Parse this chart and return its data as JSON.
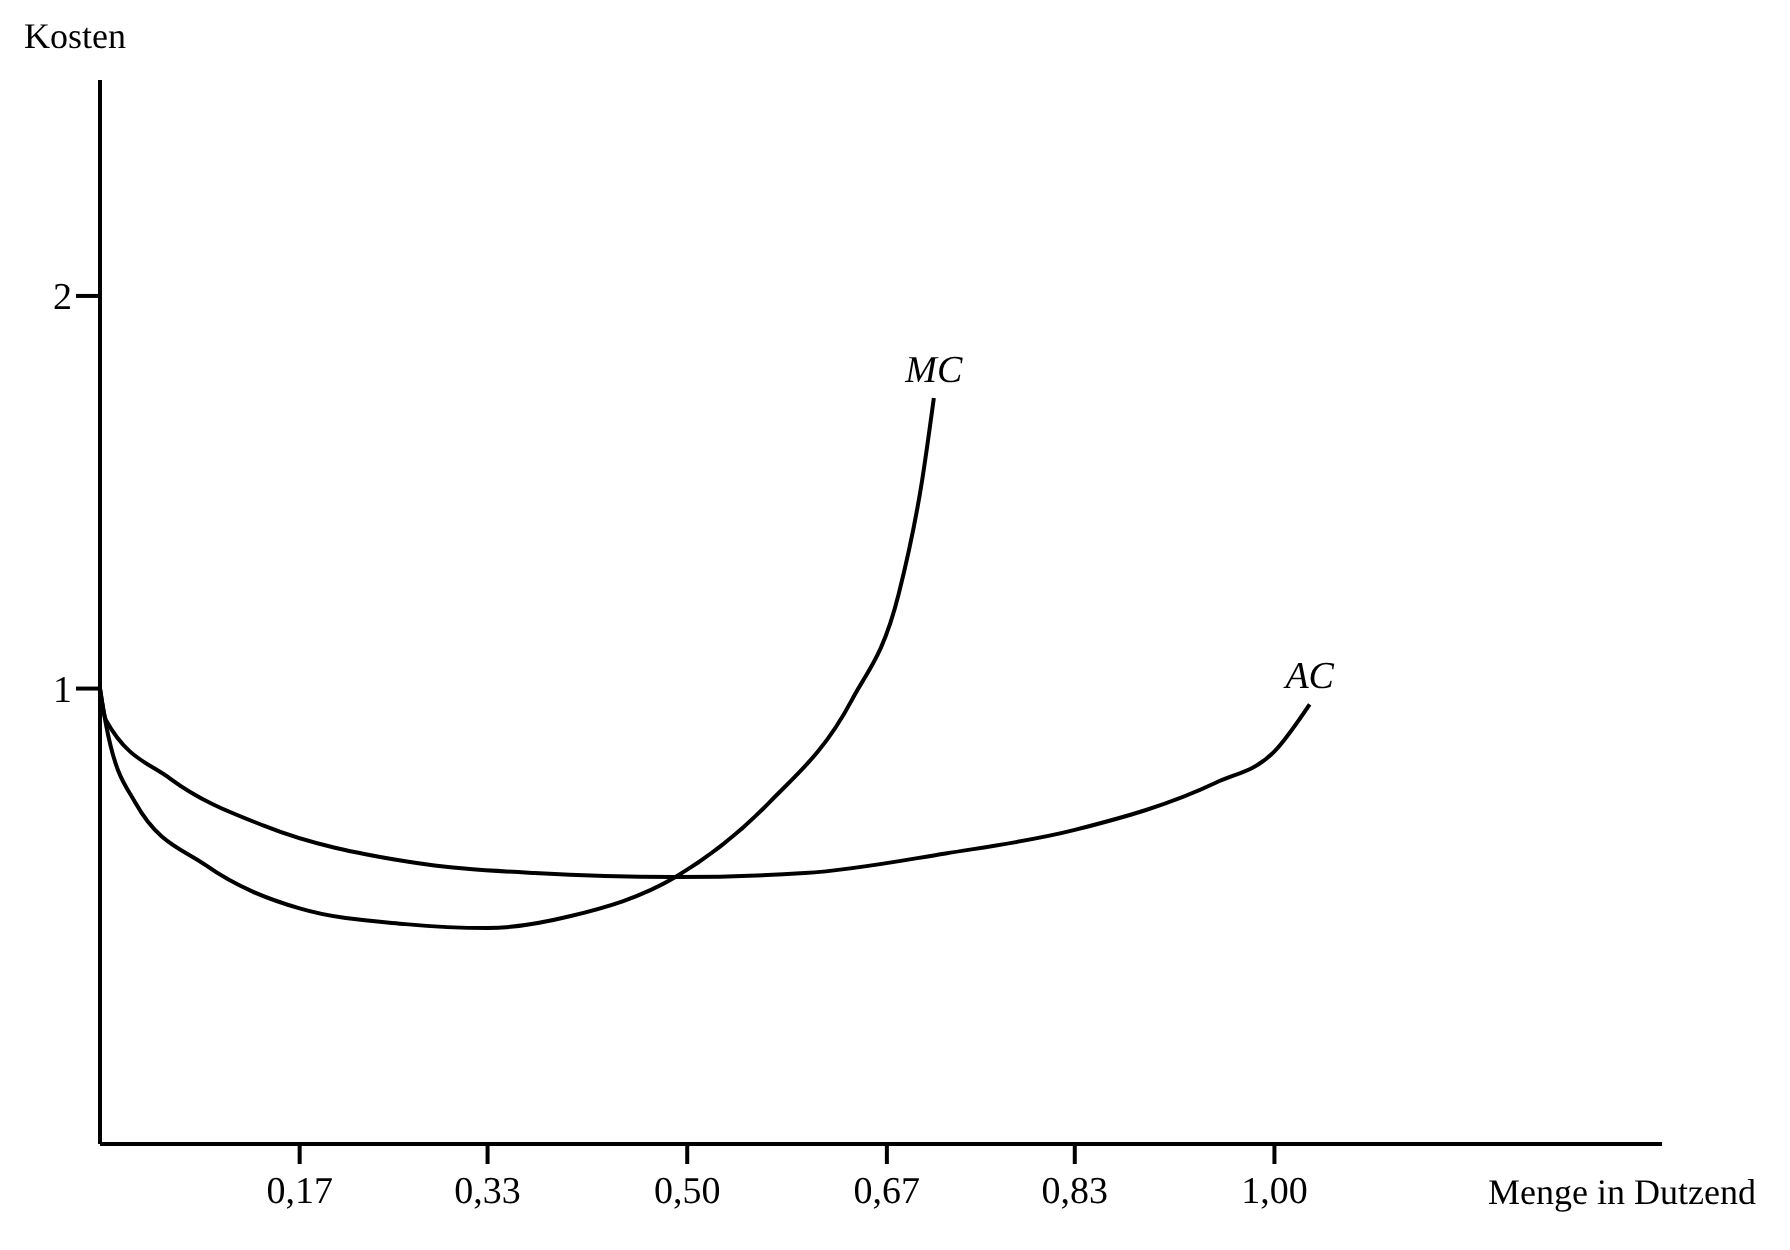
{
  "chart_data": {
    "type": "line",
    "xlabel": "Menge in Dutzend",
    "ylabel": "Kosten",
    "xlim": [
      0,
      1.33
    ],
    "ylim": [
      -0.16,
      2.55
    ],
    "xticks": [
      {
        "value": 0.17,
        "label": "0,17"
      },
      {
        "value": 0.33,
        "label": "0,33"
      },
      {
        "value": 0.5,
        "label": "0,50"
      },
      {
        "value": 0.67,
        "label": "0,67"
      },
      {
        "value": 0.83,
        "label": "0,83"
      },
      {
        "value": 1.0,
        "label": "1,00"
      }
    ],
    "yticks": [
      1,
      2
    ],
    "grid": false,
    "legend": false,
    "marker": "none",
    "line_style": "solid",
    "series": [
      {
        "name": "MC",
        "color": "#000000",
        "x": [
          0,
          0.005,
          0.03,
          0.09,
          0.17,
          0.26,
          0.33,
          0.4,
          0.49,
          0.57,
          0.64,
          0.68,
          0.7,
          0.71
        ],
        "values": [
          1,
          0.91,
          0.71,
          0.55,
          0.44,
          0.4,
          0.39,
          0.42,
          0.52,
          0.71,
          0.97,
          1.24,
          1.53,
          1.74
        ]
      },
      {
        "name": "AC",
        "color": "#000000",
        "x": [
          0,
          0.005,
          0.06,
          0.14,
          0.26,
          0.37,
          0.49,
          0.6,
          0.72,
          0.83,
          0.95,
          1.0,
          1.03
        ],
        "values": [
          1,
          0.92,
          0.77,
          0.65,
          0.56,
          0.53,
          0.52,
          0.53,
          0.58,
          0.64,
          0.76,
          0.84,
          0.96
        ]
      }
    ]
  }
}
